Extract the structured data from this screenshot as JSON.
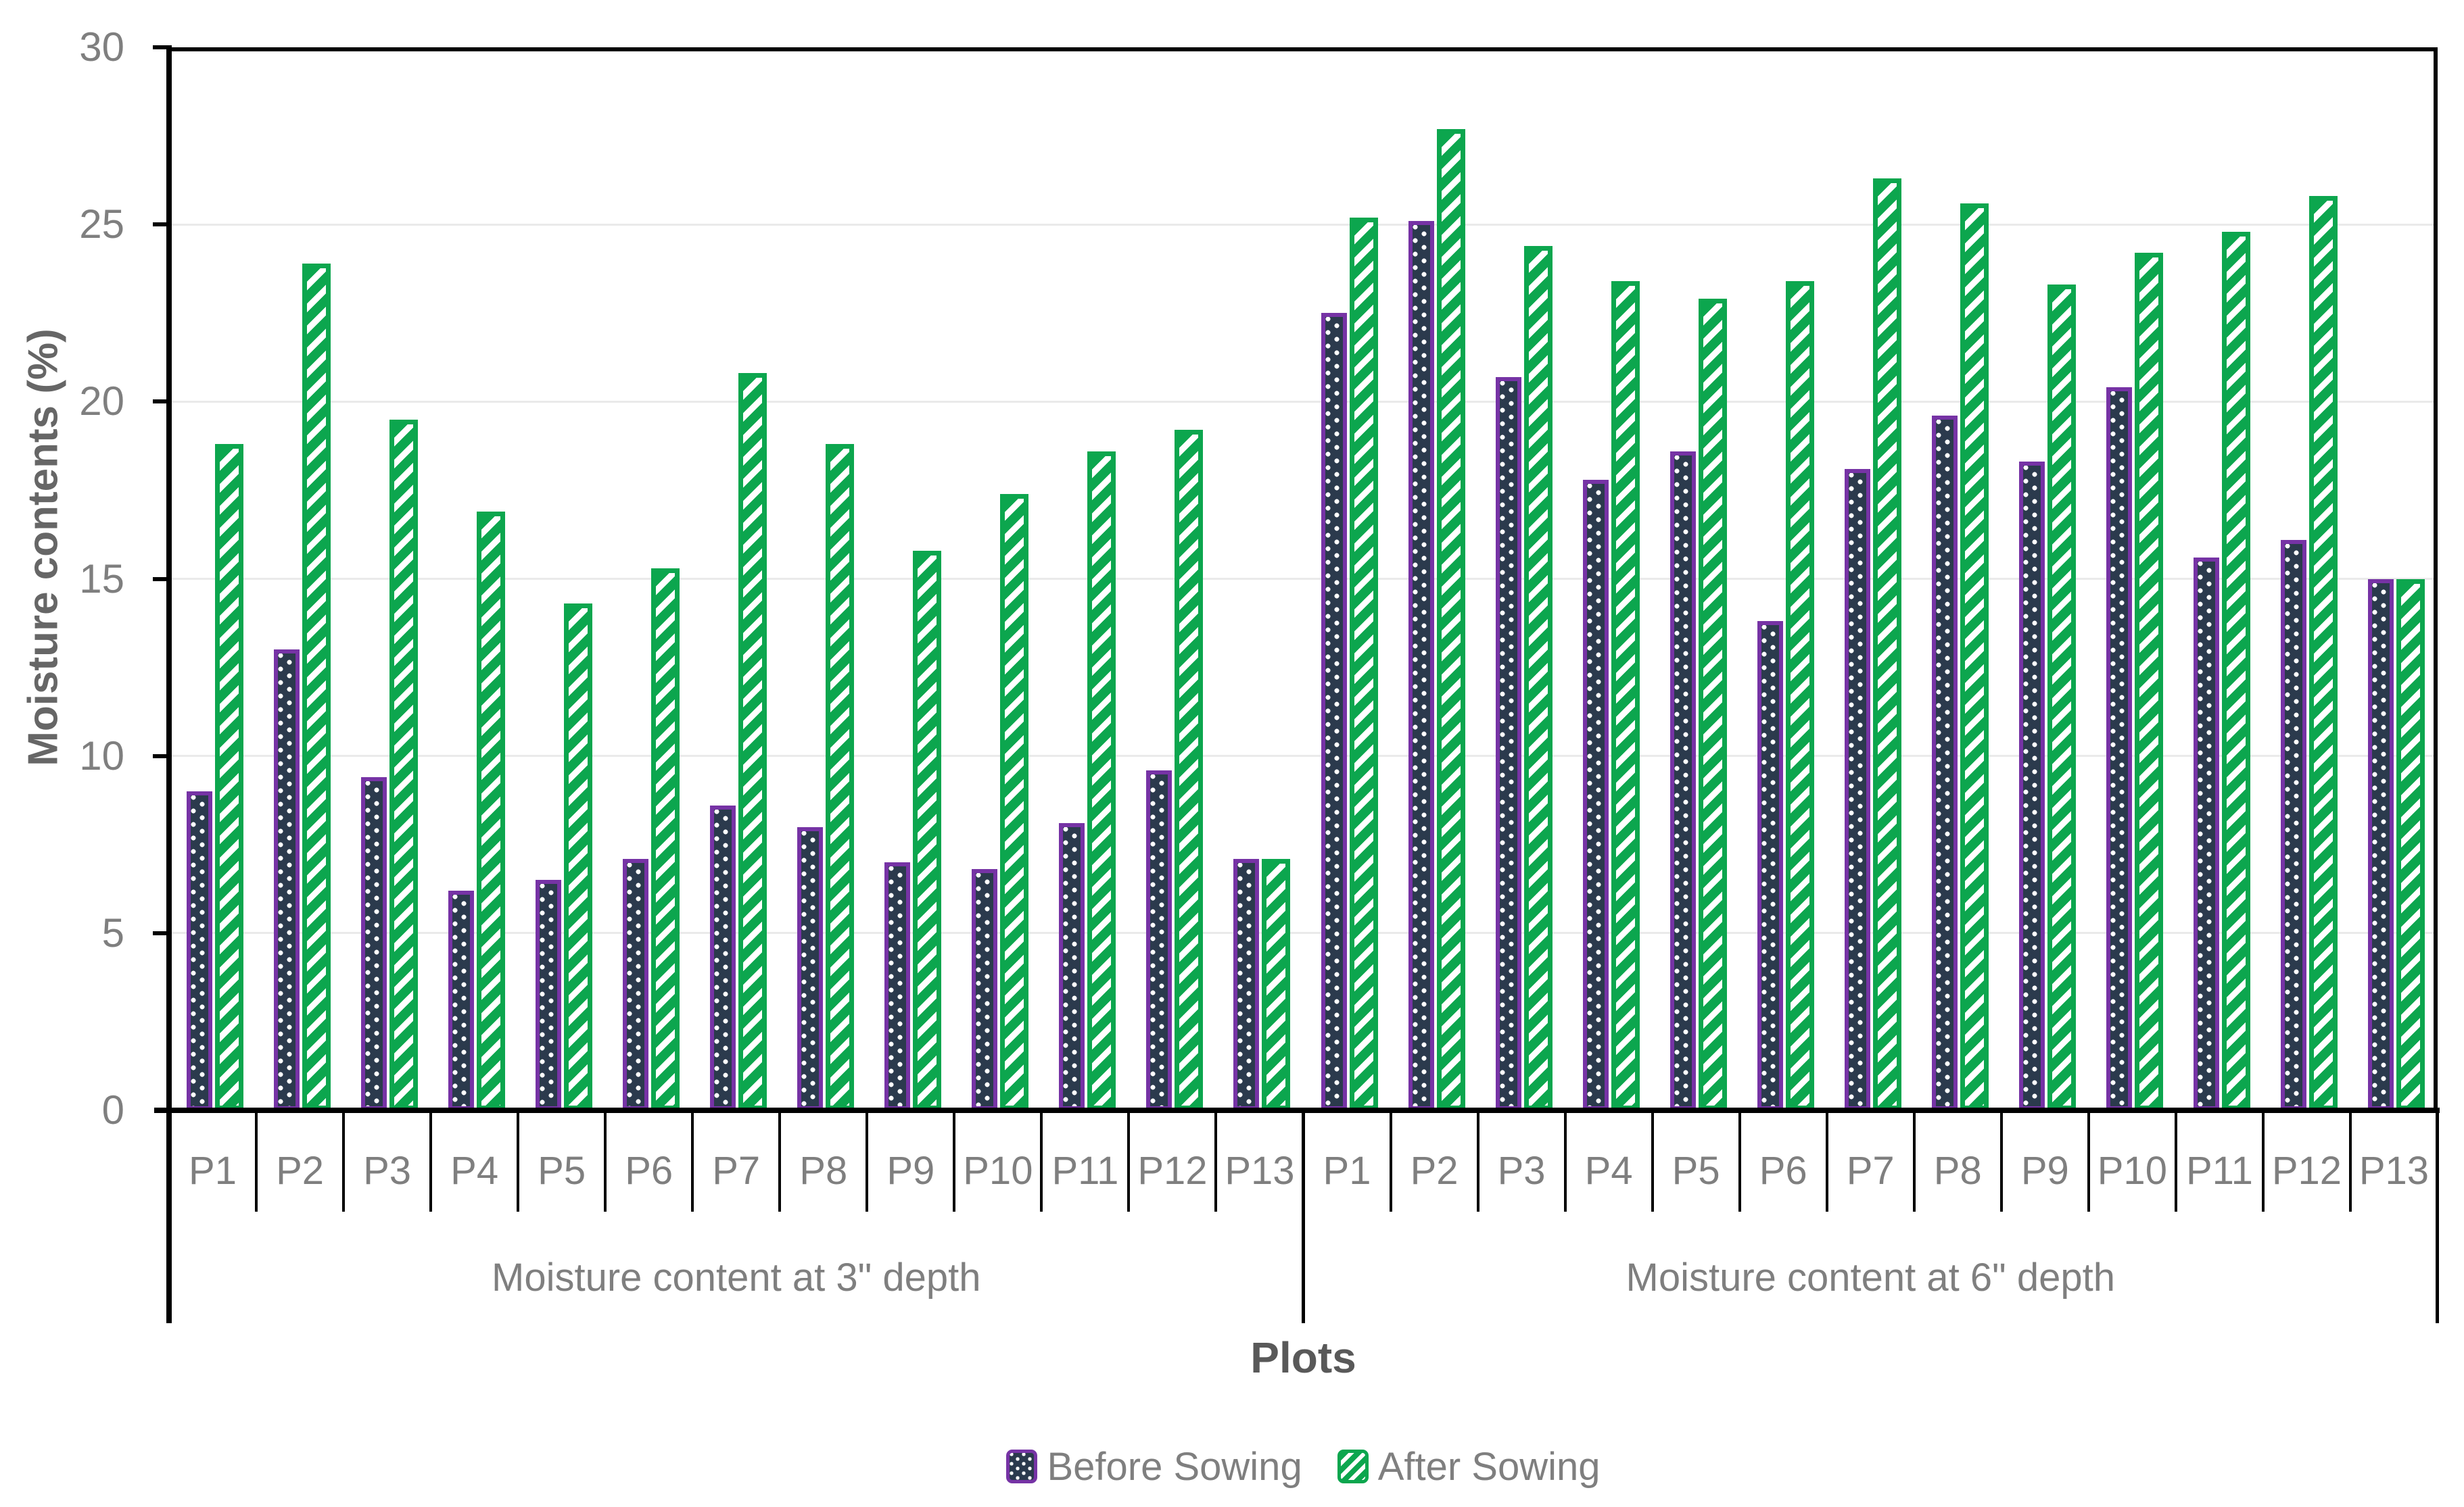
{
  "chart_data": {
    "type": "bar",
    "title": "",
    "ylabel": "Moisture contents (%)",
    "xlabel": "Plots",
    "ylim": [
      0,
      30
    ],
    "yticks": [
      0,
      5,
      10,
      15,
      20,
      25,
      30
    ],
    "grid": "horizontal",
    "legend_position": "bottom",
    "categories": [
      "P1",
      "P2",
      "P3",
      "P4",
      "P5",
      "P6",
      "P7",
      "P8",
      "P9",
      "P10",
      "P11",
      "P12",
      "P13"
    ],
    "groups": [
      {
        "label": "Moisture content at 3\" depth",
        "series": [
          {
            "name": "Before Sowing",
            "values": [
              9.0,
              13.0,
              9.4,
              6.2,
              6.5,
              7.1,
              8.6,
              8.0,
              7.0,
              6.8,
              8.1,
              9.6,
              7.1
            ]
          },
          {
            "name": "After Sowing",
            "values": [
              18.8,
              23.9,
              19.5,
              16.9,
              14.3,
              15.3,
              20.8,
              18.8,
              15.8,
              17.4,
              18.6,
              19.2,
              7.1
            ]
          }
        ]
      },
      {
        "label": "Moisture content at 6\" depth",
        "series": [
          {
            "name": "Before Sowing",
            "values": [
              22.5,
              25.1,
              20.7,
              17.8,
              18.6,
              13.8,
              18.1,
              19.6,
              18.3,
              20.4,
              15.6,
              16.1,
              15.0
            ]
          },
          {
            "name": "After Sowing",
            "values": [
              25.2,
              27.7,
              24.4,
              23.4,
              22.9,
              23.4,
              26.3,
              25.6,
              23.3,
              24.2,
              24.8,
              25.8,
              15.0
            ]
          }
        ]
      }
    ],
    "colors": {
      "before_border": "#7633A5",
      "before_fill": "#2B3A4D",
      "after_green": "#0CA64E",
      "label_gray": "#7F7F7F",
      "title_gray": "#595959",
      "gridline": "#EAEAEA",
      "axis": "#000000"
    }
  },
  "legend": {
    "items": [
      {
        "label": "Before Sowing"
      },
      {
        "label": "After Sowing"
      }
    ]
  }
}
